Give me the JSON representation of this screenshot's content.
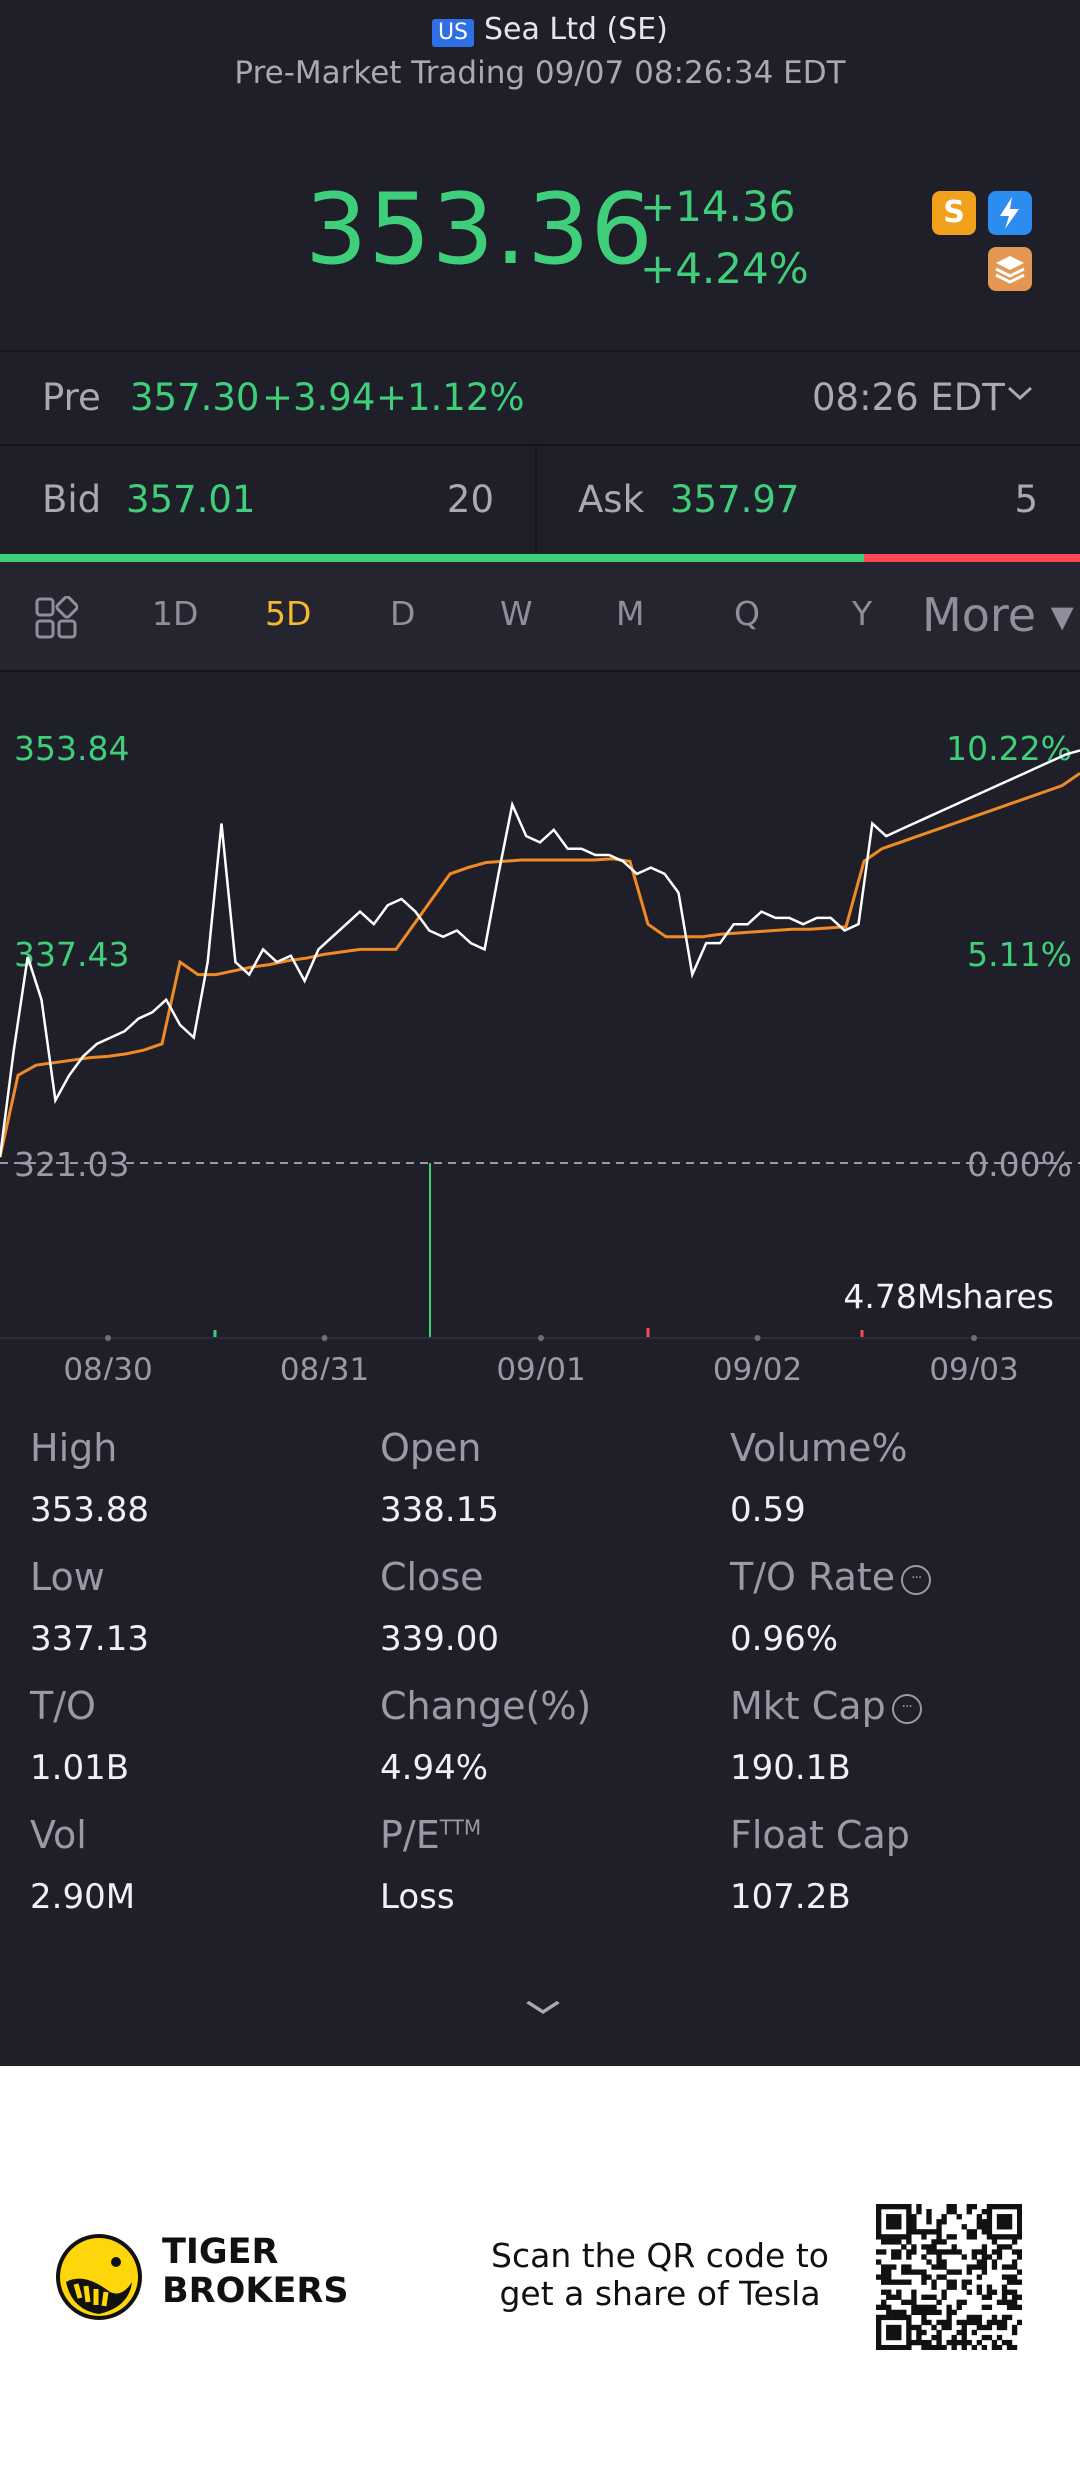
{
  "header": {
    "market_tag": "US",
    "title": "Sea Ltd (SE)",
    "subtitle": "Pre-Market Trading 09/07 08:26:34 EDT",
    "price": "353.36",
    "change": "+14.36",
    "change_pct": "+4.24%",
    "badges": [
      {
        "icon": "dollar-badge-icon",
        "glyph": "S",
        "color": "#f1a21c"
      },
      {
        "icon": "lightning-badge-icon",
        "glyph": "⚡",
        "color": "#2d8cf0"
      },
      {
        "icon": "layers-badge-icon",
        "glyph": "≋",
        "color": "#e49752"
      }
    ]
  },
  "pre": {
    "label": "Pre",
    "price": "357.30",
    "change": "+3.94",
    "change_pct": "+1.12%",
    "time": "08:26 EDT"
  },
  "bidask": {
    "bid_label": "Bid",
    "bid_price": "357.01",
    "bid_size": "20",
    "ask_label": "Ask",
    "ask_price": "357.97",
    "ask_size": "5",
    "bid_share": 0.8
  },
  "tabs": {
    "items": [
      "1D",
      "5D",
      "D",
      "W",
      "M",
      "Q",
      "Y"
    ],
    "active": "5D",
    "more": "More ▾"
  },
  "chart_data": {
    "type": "line",
    "x_ticks": [
      "08/30",
      "08/31",
      "09/01",
      "09/02",
      "09/03"
    ],
    "y_left_ticks": [
      "353.84",
      "337.43",
      "321.03"
    ],
    "y_right_ticks": [
      "10.22%",
      "5.11%",
      "0.00%"
    ],
    "ylim": [
      321.03,
      353.84
    ],
    "volume_label": "4.78Mshares",
    "series": [
      {
        "color": "#ffffff",
        "values": [
          321.5,
          330,
          337.4,
          334,
          326,
          328,
          329.5,
          330.5,
          331,
          331.5,
          332.5,
          333,
          334,
          332,
          331,
          337,
          348,
          337,
          336,
          338,
          337,
          337.5,
          335.5,
          338,
          339,
          340,
          341,
          340,
          341.5,
          342,
          341,
          339.5,
          339,
          339.5,
          338.5,
          338,
          344,
          349.5,
          347,
          346.5,
          347.5,
          346,
          346,
          345.5,
          345.5,
          345,
          344,
          344.5,
          344,
          342.5,
          336,
          338.5,
          338.5,
          340,
          340,
          341,
          340.5,
          340.5,
          340,
          340.5,
          340.5,
          339.5,
          340,
          348,
          347,
          347.5,
          348,
          348.5,
          349,
          349.5,
          350,
          350.5,
          351,
          351.5,
          352,
          352.5,
          353,
          353.5,
          353.8
        ]
      },
      {
        "color": "#f08a24",
        "values": [
          321.5,
          328,
          328.8,
          329,
          329.2,
          329.4,
          329.5,
          329.7,
          330,
          330.5,
          337,
          336,
          336,
          336.3,
          336.6,
          336.8,
          337.1,
          337.3,
          337.6,
          337.8,
          338,
          338,
          338,
          340,
          342,
          344,
          344.5,
          344.9,
          345,
          345.1,
          345.1,
          345.1,
          345.1,
          345.1,
          345.2,
          345,
          340,
          339,
          339,
          339,
          339.2,
          339.3,
          339.4,
          339.5,
          339.6,
          339.6,
          339.7,
          339.8,
          345,
          346,
          346.5,
          347,
          347.5,
          348,
          348.5,
          349,
          349.5,
          350,
          350.5,
          351,
          352
        ]
      }
    ]
  },
  "stats": [
    {
      "label": "High",
      "value": "353.88"
    },
    {
      "label": "Open",
      "value": "338.15"
    },
    {
      "label": "Volume%",
      "value": "0.59"
    },
    {
      "label": "Low",
      "value": "337.13"
    },
    {
      "label": "Close",
      "value": "339.00"
    },
    {
      "label": "T/O Rate",
      "value": "0.96%",
      "info": true
    },
    {
      "label": "T/O",
      "value": "1.01B"
    },
    {
      "label": "Change(%)",
      "value": "4.94%"
    },
    {
      "label": "Mkt Cap",
      "value": "190.1B",
      "info": true
    },
    {
      "label": "Vol",
      "value": "2.90M"
    },
    {
      "label": "P/E",
      "sup": "TTM",
      "value": "Loss"
    },
    {
      "label": "Float Cap",
      "value": "107.2B"
    }
  ],
  "footer": {
    "brand_line1": "TIGER",
    "brand_line2": "BROKERS",
    "promo_line1": "Scan the QR code to",
    "promo_line2": "get a share of Tesla"
  }
}
